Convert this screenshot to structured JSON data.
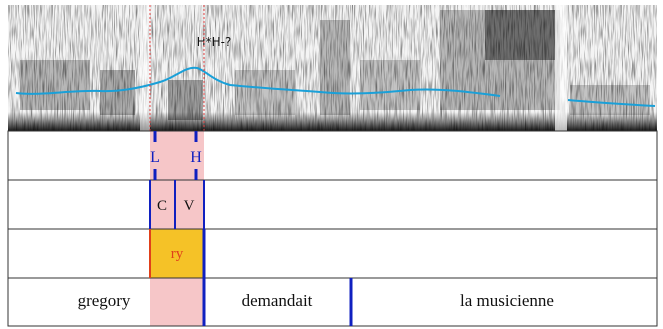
{
  "annotation": {
    "peak_label": "H*H-?"
  },
  "tiers": {
    "tones": [
      {
        "label": "L"
      },
      {
        "label": "H"
      }
    ],
    "segments": [
      {
        "label": "C"
      },
      {
        "label": "V"
      }
    ],
    "syllable": {
      "label": "ry"
    },
    "words": [
      {
        "label": "gregory"
      },
      {
        "label": "demandait"
      },
      {
        "label": "la musicienne"
      }
    ]
  },
  "colors": {
    "pitch_track": "#1aa0d8",
    "highlight_region": "#f6c6c8",
    "boundary_line": "#1020c0",
    "syllable_fill": "#f5c227",
    "syllable_text": "#e0401a",
    "syllable_edge": "#e0401a",
    "dashed_marker": "#e04040",
    "tier_line": "#333333"
  }
}
